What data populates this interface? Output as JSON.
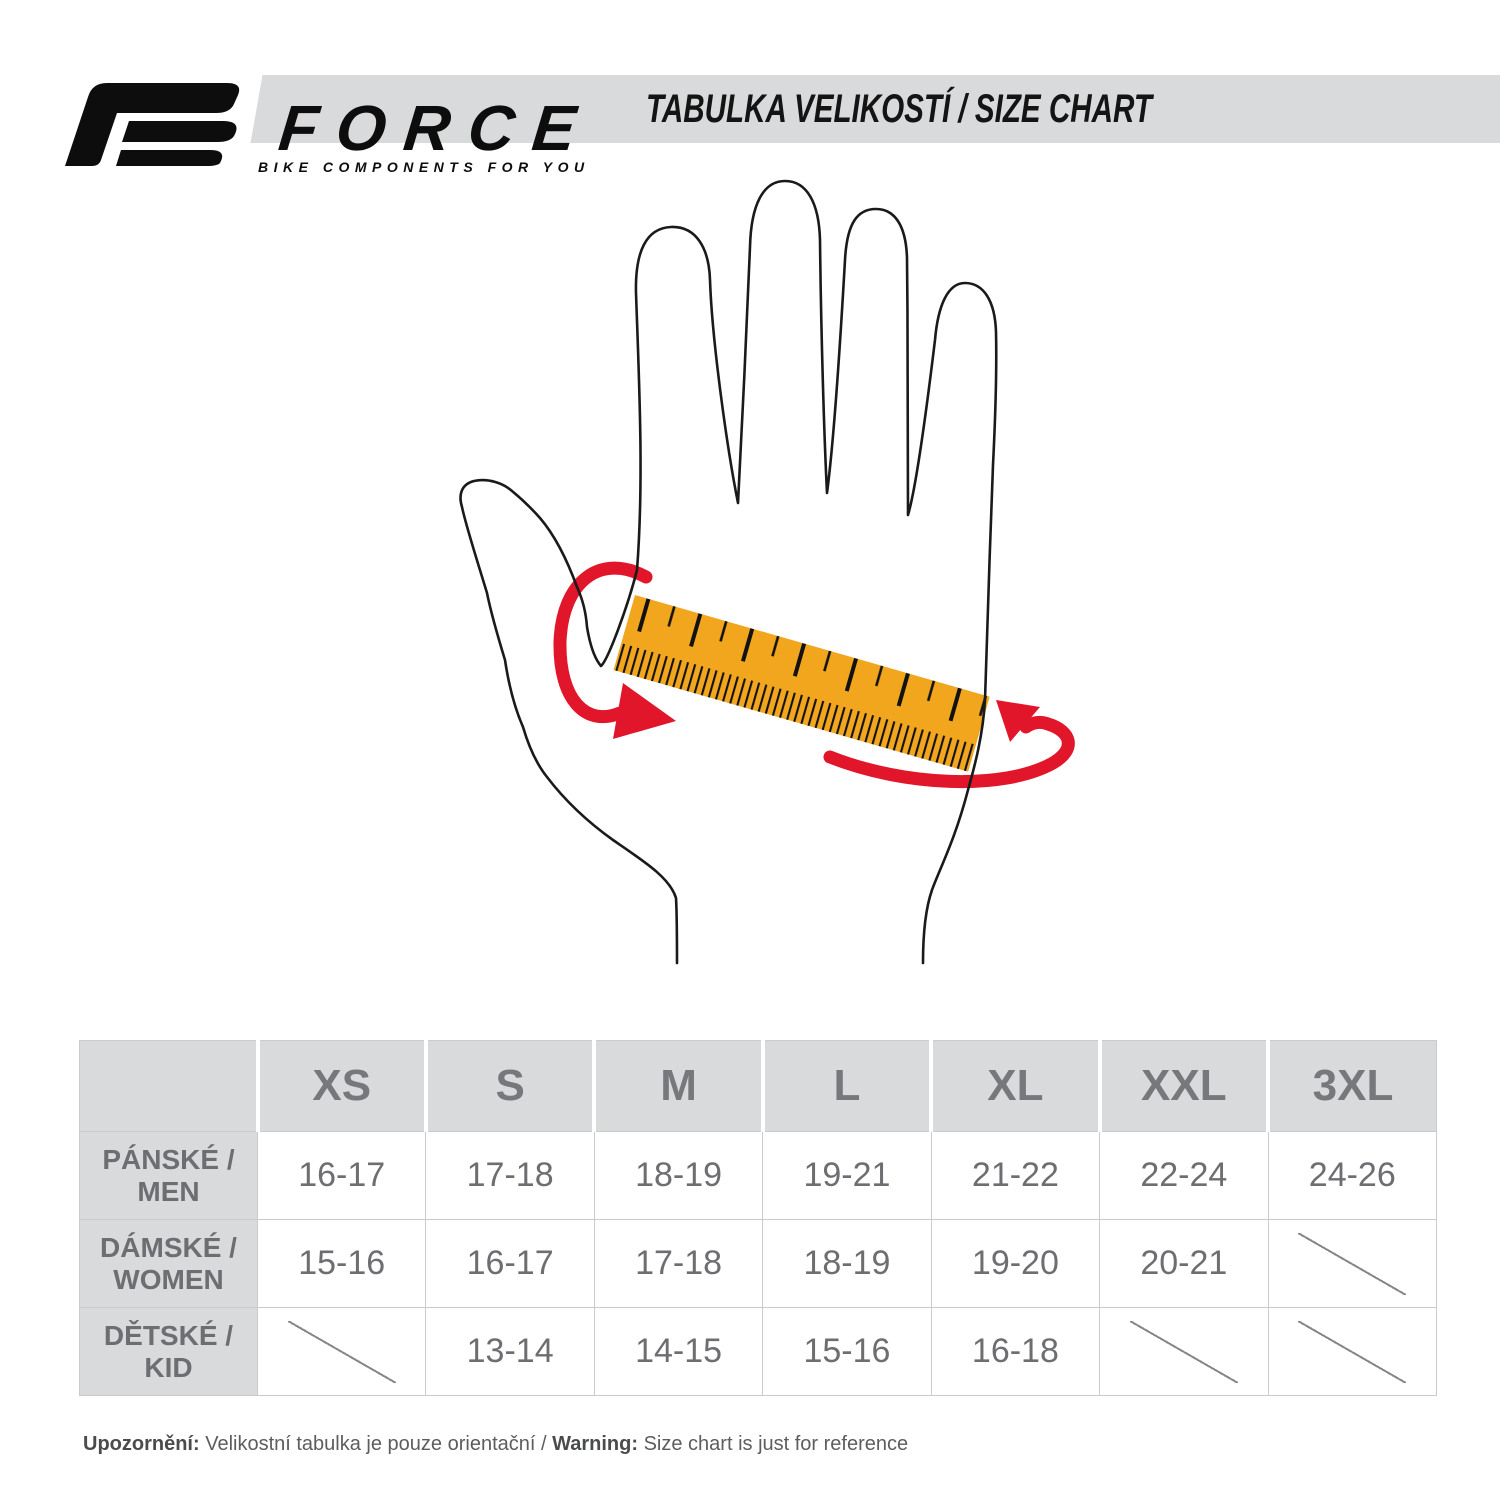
{
  "logo": {
    "brand": "FORCE",
    "tagline": "BIKE COMPONENTS FOR YOU"
  },
  "header": {
    "title": "TABULKA VELIKOSTÍ / SIZE CHART"
  },
  "icons": [
    "force-logo-glyph",
    "hand-outline-illustration",
    "measuring-ruler",
    "wrap-arrow-left",
    "wrap-arrow-right",
    "not-available-slash"
  ],
  "size_chart": {
    "columns": [
      "XS",
      "S",
      "M",
      "L",
      "XL",
      "XXL",
      "3XL"
    ],
    "rows": [
      {
        "label_lines": [
          "PÁNSKÉ /",
          "MEN"
        ],
        "values": [
          "16-17",
          "17-18",
          "18-19",
          "19-21",
          "21-22",
          "22-24",
          "24-26"
        ]
      },
      {
        "label_lines": [
          "DÁMSKÉ /",
          "WOMEN"
        ],
        "values": [
          "15-16",
          "16-17",
          "17-18",
          "18-19",
          "19-20",
          "20-21",
          null
        ]
      },
      {
        "label_lines": [
          "DĚTSKÉ /",
          "KID"
        ],
        "values": [
          null,
          "13-14",
          "14-15",
          "15-16",
          "16-18",
          null,
          null
        ]
      }
    ]
  },
  "chart_data": {
    "type": "table",
    "columns": [
      "",
      "XS",
      "S",
      "M",
      "L",
      "XL",
      "XXL",
      "3XL"
    ],
    "rows": [
      [
        "PÁNSKÉ / MEN",
        "16-17",
        "17-18",
        "18-19",
        "19-21",
        "21-22",
        "22-24",
        "24-26"
      ],
      [
        "DÁMSKÉ / WOMEN",
        "15-16",
        "16-17",
        "17-18",
        "18-19",
        "19-20",
        "20-21",
        null
      ],
      [
        "DĚTSKÉ / KID",
        null,
        "13-14",
        "14-15",
        "15-16",
        "16-18",
        null,
        null
      ]
    ]
  },
  "footer": {
    "notice_label_cs": "Upozornění:",
    "notice_text_cs": " Velikostní tabulka je pouze orientační / ",
    "notice_label_en": "Warning:",
    "notice_text_en": " Size chart is just for reference"
  },
  "colors": {
    "accent_red": "#e2162a",
    "ruler_orange": "#f2a61e",
    "band_gray": "#d8dadb",
    "table_border_gray": "#c9cbcd",
    "header_text_gray": "#77787b",
    "cell_text_gray": "#6d6e71"
  }
}
